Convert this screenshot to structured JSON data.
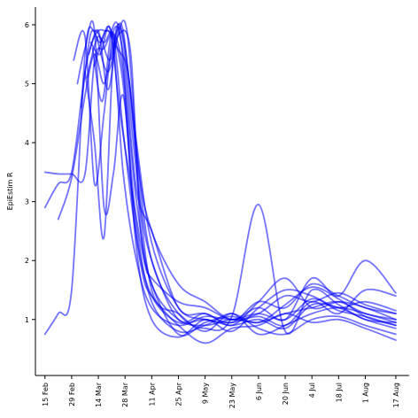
{
  "chart_data": {
    "type": "line",
    "title": "",
    "xlabel": "",
    "ylabel": "EpiEstim R",
    "x_is_date": true,
    "xlim": [
      "2020-02-10",
      "2020-08-24"
    ],
    "ylim": [
      0.05,
      6.3
    ],
    "yticks": [
      1,
      2,
      3,
      4,
      5,
      6
    ],
    "xticks": [
      {
        "date": "2020-02-15",
        "label": "15 Feb"
      },
      {
        "date": "2020-02-29",
        "label": "29 Feb"
      },
      {
        "date": "2020-03-14",
        "label": "14 Mar"
      },
      {
        "date": "2020-03-28",
        "label": "28 Mar"
      },
      {
        "date": "2020-04-11",
        "label": "11 Apr"
      },
      {
        "date": "2020-04-25",
        "label": "25 Apr"
      },
      {
        "date": "2020-05-09",
        "label": "9 May"
      },
      {
        "date": "2020-05-23",
        "label": "23 May"
      },
      {
        "date": "2020-06-06",
        "label": "6 Jun"
      },
      {
        "date": "2020-06-20",
        "label": "20 Jun"
      },
      {
        "date": "2020-07-04",
        "label": "4 Jul"
      },
      {
        "date": "2020-07-18",
        "label": "18 Jul"
      },
      {
        "date": "2020-08-01",
        "label": "1 Aug"
      },
      {
        "date": "2020-08-17",
        "label": "17 Aug"
      }
    ],
    "grid": false,
    "legend": "none",
    "series_color": "#0000ff",
    "series": [
      {
        "x": [
          "2020-02-15",
          "2020-02-22",
          "2020-02-29",
          "2020-03-07",
          "2020-03-12",
          "2020-03-17",
          "2020-03-22",
          "2020-03-27",
          "2020-04-03",
          "2020-04-11",
          "2020-04-25",
          "2020-05-09",
          "2020-05-23",
          "2020-06-06",
          "2020-06-20",
          "2020-07-04",
          "2020-07-18",
          "2020-08-01",
          "2020-08-17"
        ],
        "y": [
          0.75,
          1.1,
          1.5,
          5.5,
          5.9,
          5.7,
          5.8,
          4.2,
          2.4,
          1.4,
          0.95,
          1.0,
          0.9,
          1.0,
          0.85,
          1.25,
          1.2,
          1.0,
          0.85
        ]
      },
      {
        "x": [
          "2020-02-15",
          "2020-02-22",
          "2020-02-29",
          "2020-03-07",
          "2020-03-12",
          "2020-03-17",
          "2020-03-22",
          "2020-03-27",
          "2020-04-03",
          "2020-04-11",
          "2020-04-25",
          "2020-05-09",
          "2020-05-23",
          "2020-06-06",
          "2020-06-20",
          "2020-07-04",
          "2020-07-18",
          "2020-08-01",
          "2020-08-17"
        ],
        "y": [
          2.9,
          3.3,
          3.5,
          5.2,
          5.8,
          5.9,
          5.6,
          3.5,
          2.0,
          1.2,
          0.9,
          1.05,
          1.0,
          1.1,
          1.0,
          1.35,
          1.15,
          1.05,
          0.9
        ]
      },
      {
        "x": [
          "2020-02-15",
          "2020-02-22",
          "2020-02-29",
          "2020-03-07",
          "2020-03-12",
          "2020-03-17",
          "2020-03-22",
          "2020-03-27",
          "2020-04-03",
          "2020-04-11",
          "2020-04-25",
          "2020-05-09",
          "2020-05-23",
          "2020-06-06",
          "2020-06-20",
          "2020-07-04",
          "2020-07-18",
          "2020-08-01",
          "2020-08-17"
        ],
        "y": [
          3.5,
          3.47,
          3.47,
          3.47,
          5.4,
          5.6,
          5.85,
          5.2,
          3.0,
          1.6,
          1.0,
          0.9,
          1.0,
          0.95,
          1.1,
          1.2,
          1.3,
          1.1,
          1.0
        ]
      },
      {
        "x": [
          "2020-02-22",
          "2020-02-29",
          "2020-03-07",
          "2020-03-12",
          "2020-03-17",
          "2020-03-22",
          "2020-03-27",
          "2020-04-03",
          "2020-04-11",
          "2020-04-25",
          "2020-05-09",
          "2020-05-23",
          "2020-06-06",
          "2020-06-20",
          "2020-07-04",
          "2020-07-18",
          "2020-08-01",
          "2020-08-17"
        ],
        "y": [
          2.7,
          3.4,
          4.8,
          5.5,
          5.0,
          5.7,
          5.9,
          3.8,
          2.0,
          1.1,
          0.85,
          1.05,
          2.95,
          0.8,
          1.5,
          1.25,
          1.0,
          0.95
        ]
      },
      {
        "x": [
          "2020-03-01",
          "2020-03-07",
          "2020-03-12",
          "2020-03-17",
          "2020-03-22",
          "2020-03-27",
          "2020-04-03",
          "2020-04-11",
          "2020-04-25",
          "2020-05-09",
          "2020-05-23",
          "2020-06-06",
          "2020-06-20",
          "2020-07-04",
          "2020-07-18",
          "2020-08-01",
          "2020-08-17"
        ],
        "y": [
          5.4,
          5.8,
          3.3,
          4.5,
          5.9,
          5.5,
          3.2,
          2.5,
          1.2,
          1.1,
          0.95,
          1.3,
          1.2,
          1.6,
          1.4,
          1.2,
          1.1
        ]
      },
      {
        "x": [
          "2020-03-03",
          "2020-03-07",
          "2020-03-12",
          "2020-03-17",
          "2020-03-22",
          "2020-03-27",
          "2020-04-03",
          "2020-04-11",
          "2020-04-25",
          "2020-05-09",
          "2020-05-23",
          "2020-06-06",
          "2020-06-20",
          "2020-07-04",
          "2020-07-18",
          "2020-08-01",
          "2020-08-17"
        ],
        "y": [
          5.0,
          5.6,
          5.9,
          2.9,
          3.5,
          4.8,
          2.6,
          1.3,
          0.8,
          0.9,
          1.1,
          0.85,
          0.75,
          1.0,
          1.05,
          0.9,
          0.75
        ]
      },
      {
        "x": [
          "2020-03-05",
          "2020-03-10",
          "2020-03-15",
          "2020-03-20",
          "2020-03-27",
          "2020-04-03",
          "2020-04-11",
          "2020-04-25",
          "2020-05-09",
          "2020-05-23",
          "2020-06-06",
          "2020-06-20",
          "2020-07-04",
          "2020-07-18",
          "2020-08-01",
          "2020-08-17"
        ],
        "y": [
          4.6,
          5.85,
          5.7,
          5.95,
          5.0,
          2.2,
          1.0,
          0.7,
          1.0,
          0.8,
          1.2,
          1.5,
          1.4,
          1.2,
          1.3,
          1.15
        ]
      },
      {
        "x": [
          "2020-03-07",
          "2020-03-12",
          "2020-03-17",
          "2020-03-22",
          "2020-03-27",
          "2020-04-03",
          "2020-04-11",
          "2020-04-25",
          "2020-05-09",
          "2020-05-23",
          "2020-06-06",
          "2020-06-20",
          "2020-07-04",
          "2020-07-18",
          "2020-08-01",
          "2020-08-17"
        ],
        "y": [
          5.2,
          4.0,
          2.4,
          5.6,
          5.8,
          4.0,
          2.3,
          1.2,
          1.0,
          0.95,
          1.05,
          0.9,
          1.3,
          1.1,
          1.5,
          1.4
        ]
      },
      {
        "x": [
          "2020-03-09",
          "2020-03-14",
          "2020-03-19",
          "2020-03-24",
          "2020-03-29",
          "2020-04-04",
          "2020-04-11",
          "2020-04-25",
          "2020-05-09",
          "2020-05-23",
          "2020-06-06",
          "2020-06-20",
          "2020-07-04",
          "2020-07-18",
          "2020-08-01",
          "2020-08-17"
        ],
        "y": [
          5.5,
          5.9,
          4.9,
          5.8,
          5.9,
          3.6,
          2.5,
          1.6,
          1.3,
          1.0,
          1.2,
          1.0,
          1.7,
          1.4,
          2.0,
          1.45
        ]
      },
      {
        "x": [
          "2020-03-11",
          "2020-03-16",
          "2020-03-21",
          "2020-03-26",
          "2020-04-01",
          "2020-04-06",
          "2020-04-11",
          "2020-04-25",
          "2020-05-09",
          "2020-05-23",
          "2020-06-06",
          "2020-06-20",
          "2020-07-04",
          "2020-07-18",
          "2020-08-01",
          "2020-08-17"
        ],
        "y": [
          5.6,
          4.7,
          5.9,
          5.7,
          3.0,
          1.8,
          1.4,
          0.9,
          0.6,
          0.85,
          0.9,
          1.1,
          0.95,
          1.0,
          0.85,
          0.65
        ]
      },
      {
        "x": [
          "2020-03-12",
          "2020-03-18",
          "2020-03-24",
          "2020-03-30",
          "2020-04-05",
          "2020-04-11",
          "2020-04-25",
          "2020-05-09",
          "2020-05-23",
          "2020-06-06",
          "2020-06-20",
          "2020-07-04",
          "2020-07-18",
          "2020-08-01",
          "2020-08-17"
        ],
        "y": [
          5.3,
          5.9,
          5.6,
          5.1,
          3.0,
          2.0,
          1.0,
          1.1,
          0.9,
          1.3,
          1.7,
          1.2,
          1.3,
          1.2,
          1.0
        ]
      },
      {
        "x": [
          "2020-03-13",
          "2020-03-19",
          "2020-03-25",
          "2020-03-31",
          "2020-04-05",
          "2020-04-11",
          "2020-04-25",
          "2020-05-09",
          "2020-05-23",
          "2020-06-06",
          "2020-06-20",
          "2020-07-04",
          "2020-07-18",
          "2020-08-01",
          "2020-08-17"
        ],
        "y": [
          5.8,
          5.2,
          5.85,
          5.5,
          2.6,
          1.6,
          0.75,
          0.95,
          1.05,
          0.95,
          1.25,
          1.55,
          1.35,
          1.05,
          0.9
        ]
      },
      {
        "x": [
          "2020-03-08",
          "2020-03-14",
          "2020-03-20",
          "2020-03-26",
          "2020-04-02",
          "2020-04-11",
          "2020-04-25",
          "2020-05-09",
          "2020-05-23",
          "2020-06-06",
          "2020-06-20",
          "2020-07-04",
          "2020-07-18",
          "2020-08-01",
          "2020-08-17"
        ],
        "y": [
          5.1,
          5.8,
          5.4,
          5.9,
          3.8,
          1.5,
          1.1,
          0.8,
          1.1,
          0.75,
          0.9,
          1.1,
          1.2,
          1.1,
          0.95
        ]
      },
      {
        "x": [
          "2020-03-10",
          "2020-03-15",
          "2020-03-20",
          "2020-03-25",
          "2020-03-31",
          "2020-04-07",
          "2020-04-11",
          "2020-04-25",
          "2020-05-09",
          "2020-05-23",
          "2020-06-06",
          "2020-06-20",
          "2020-07-04",
          "2020-07-18",
          "2020-08-01",
          "2020-08-17"
        ],
        "y": [
          5.7,
          5.5,
          5.95,
          4.6,
          3.3,
          2.0,
          1.7,
          1.3,
          1.2,
          1.0,
          1.1,
          1.4,
          1.3,
          1.45,
          1.25,
          1.1
        ]
      }
    ]
  }
}
